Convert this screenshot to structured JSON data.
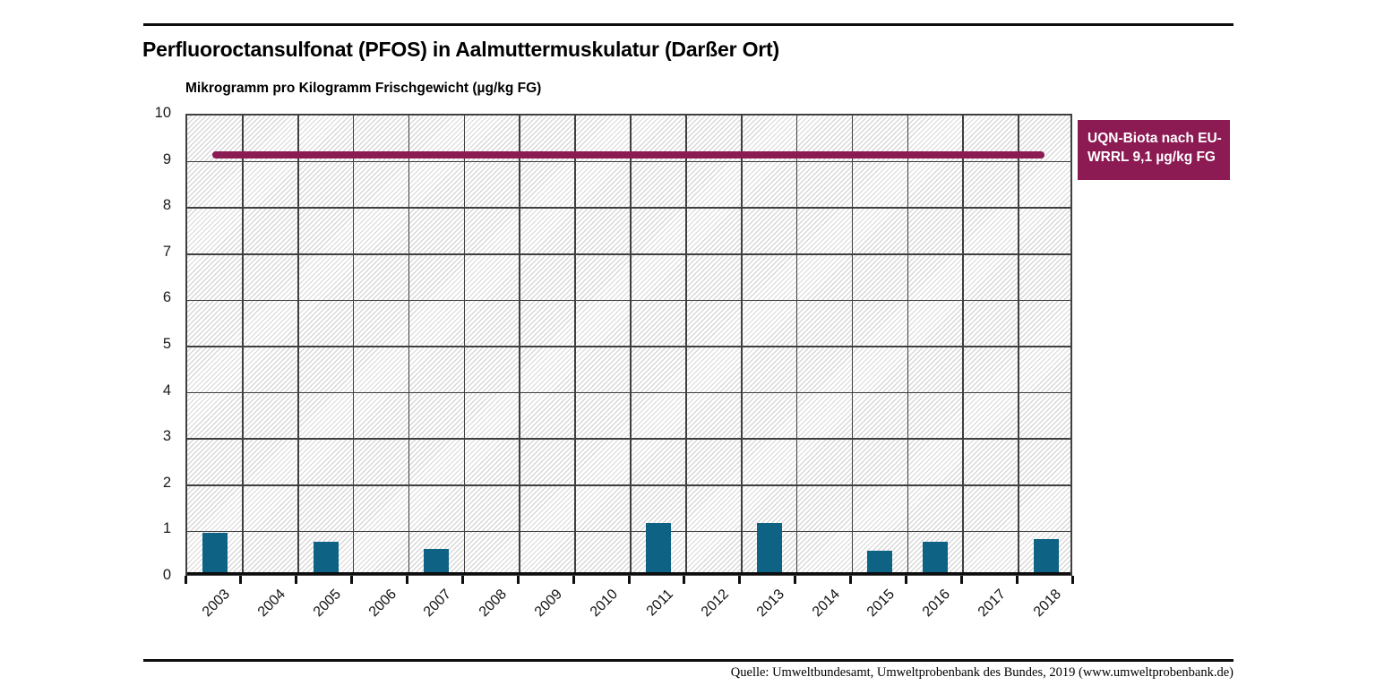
{
  "title": "Perfluoroctansulfonat (PFOS) in Aalmuttermuskulatur (Darßer Ort)",
  "subtitle": "Mikrogramm pro Kilogramm Frischgewicht (µg/kg FG)",
  "source": "Quelle: Umweltbundesamt, Umweltprobenbank des Bundes, 2019 (www.umweltprobenbank.de)",
  "legend": {
    "label": "UQN-Biota nach EU-WRRL 9,1 µg/kg FG"
  },
  "colors": {
    "bar": "#0E6284",
    "reference_line": "#8C1A53",
    "legend_bg": "#8C1A53",
    "legend_text": "#FFFFFF",
    "grid": "#3F3F3F",
    "hatch": "#D8D8D8",
    "axis": "#0D0D0D"
  },
  "chart_data": {
    "type": "bar",
    "title": "Perfluoroctansulfonat (PFOS) in Aalmuttermuskulatur (Darßer Ort)",
    "xlabel": "",
    "ylabel": "Mikrogramm pro Kilogramm Frischgewicht (µg/kg FG)",
    "categories": [
      "2003",
      "2004",
      "2005",
      "2006",
      "2007",
      "2008",
      "2009",
      "2010",
      "2011",
      "2012",
      "2013",
      "2014",
      "2015",
      "2016",
      "2017",
      "2018"
    ],
    "values": [
      0.9,
      null,
      0.7,
      null,
      0.55,
      null,
      null,
      null,
      1.1,
      null,
      1.1,
      null,
      0.5,
      0.7,
      null,
      0.75
    ],
    "ylim": [
      0,
      10
    ],
    "ytick_step": 1,
    "grid": true,
    "hatch_background": true,
    "reference_line": {
      "value": 9.1,
      "label": "UQN-Biota nach EU-WRRL 9,1 µg/kg FG"
    },
    "legend_position": "right"
  }
}
